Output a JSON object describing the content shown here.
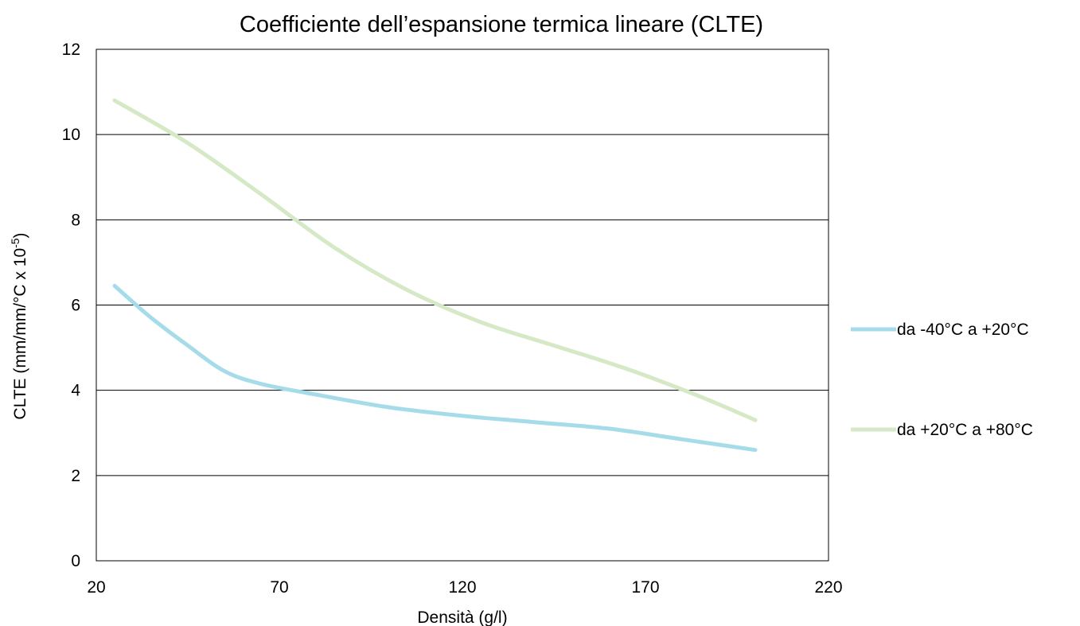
{
  "chart_data": {
    "type": "line",
    "title": "Coefficiente dell’espansione termica lineare (CLTE)",
    "xlabel": "Densità (g/l)",
    "ylabel": "CLTE (mm/mm/°C x 10",
    "ylabel_superscript": "-5",
    "ylabel_suffix": ")",
    "xlim": [
      20,
      220
    ],
    "ylim": [
      0,
      12
    ],
    "x_ticks": [
      20,
      70,
      120,
      170,
      220
    ],
    "y_ticks": [
      0,
      2,
      4,
      6,
      8,
      10,
      12
    ],
    "grid": true,
    "legend_position": "right",
    "series": [
      {
        "name": "da -40°C a +20°C",
        "color": "#a6dcea",
        "x": [
          25,
          35,
          45,
          55,
          65,
          80,
          100,
          120,
          140,
          160,
          180,
          200
        ],
        "y": [
          6.45,
          5.7,
          5.05,
          4.45,
          4.15,
          3.9,
          3.6,
          3.4,
          3.25,
          3.1,
          2.85,
          2.6
        ]
      },
      {
        "name": "da +20°C a +80°C",
        "color": "#d6e9c6",
        "x": [
          25,
          45,
          65,
          85,
          105,
          125,
          145,
          165,
          185,
          200
        ],
        "y": [
          10.8,
          9.8,
          8.6,
          7.35,
          6.35,
          5.6,
          5.05,
          4.5,
          3.85,
          3.3
        ]
      }
    ]
  }
}
